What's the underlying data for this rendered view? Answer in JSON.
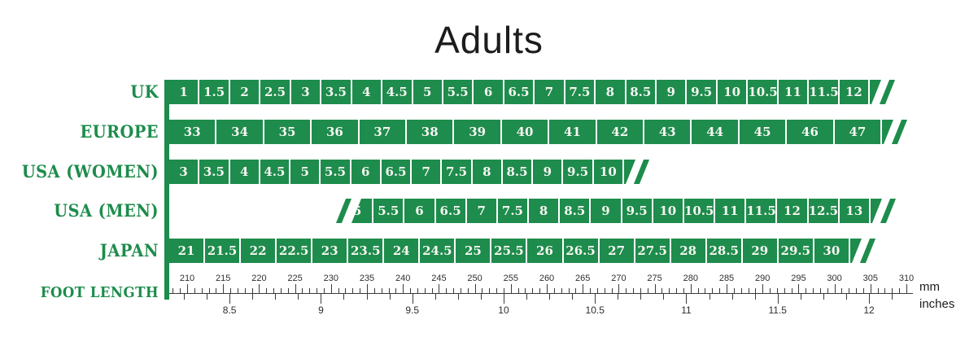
{
  "title": "Adults",
  "colors": {
    "green": "#1e8c4c",
    "ink": "#3a3a3a",
    "cell_text": "#f7f6f2"
  },
  "chart_data": {
    "type": "table",
    "title": "Adults",
    "description": "Adult shoe size conversion chart aligning UK, Europe, USA (women), USA (men) and Japan sizes against foot length in mm and inches",
    "rows": [
      {
        "label": "UK",
        "values": [
          "1",
          "1.5",
          "2",
          "2.5",
          "3",
          "3.5",
          "4",
          "4.5",
          "5",
          "5.5",
          "6",
          "6.5",
          "7",
          "7.5",
          "8",
          "8.5",
          "9",
          "9.5",
          "10",
          "10.5",
          "11",
          "11.5",
          "12"
        ],
        "continues_left": false,
        "continues_right": true
      },
      {
        "label": "EUROPE",
        "values": [
          "33",
          "34",
          "35",
          "36",
          "37",
          "38",
          "39",
          "40",
          "41",
          "42",
          "43",
          "44",
          "45",
          "46",
          "47"
        ],
        "continues_left": false,
        "continues_right": true
      },
      {
        "label": "USA (WOMEN)",
        "values": [
          "3",
          "3.5",
          "4",
          "4.5",
          "5",
          "5.5",
          "6",
          "6.5",
          "7",
          "7.5",
          "8",
          "8.5",
          "9",
          "9.5",
          "10"
        ],
        "continues_left": false,
        "continues_right": true
      },
      {
        "label": "USA (MEN)",
        "values": [
          "5",
          "5.5",
          "6",
          "6.5",
          "7",
          "7.5",
          "8",
          "8.5",
          "9",
          "9.5",
          "10",
          "10.5",
          "11",
          "11.5",
          "12",
          "12.5",
          "13"
        ],
        "continues_left": true,
        "continues_right": true
      },
      {
        "label": "JAPAN",
        "values": [
          "21",
          "21.5",
          "22",
          "22.5",
          "23",
          "23.5",
          "24",
          "24.5",
          "25",
          "25.5",
          "26",
          "26.5",
          "27",
          "27.5",
          "28",
          "28.5",
          "29",
          "29.5",
          "30"
        ],
        "continues_left": false,
        "continues_right": true
      }
    ],
    "foot_length": {
      "label": "FOOT LENGTH",
      "mm": {
        "unit": "mm",
        "tick_min": 208,
        "tick_max": 310,
        "tick_step": 1,
        "label_min": 210,
        "label_max": 310,
        "label_step": 5,
        "labels": [
          210,
          215,
          220,
          225,
          230,
          235,
          240,
          245,
          250,
          255,
          260,
          265,
          270,
          275,
          280,
          285,
          290,
          295,
          300,
          305,
          310
        ]
      },
      "inches": {
        "unit": "inches",
        "tick_min": 8.25,
        "tick_max": 12.25,
        "tick_step": 0.125,
        "labels": [
          8.5,
          9,
          9.5,
          10,
          10.5,
          11,
          11.5,
          12
        ]
      }
    }
  }
}
